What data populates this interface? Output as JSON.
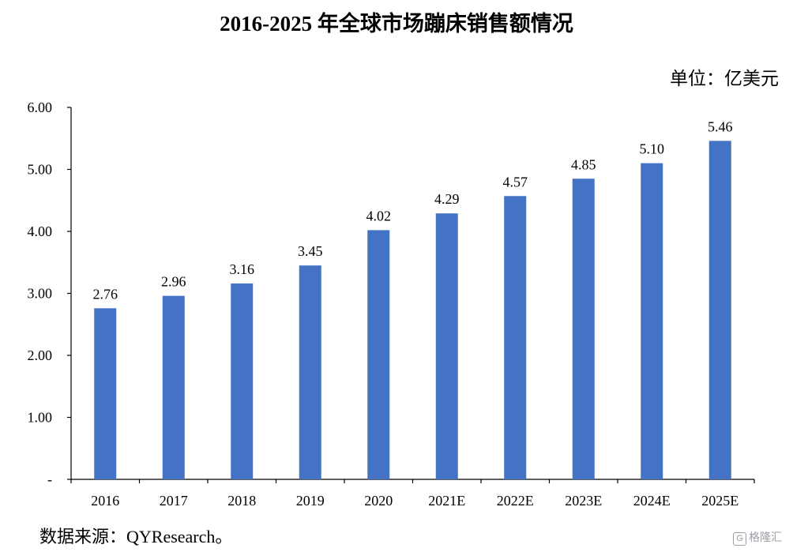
{
  "header": {
    "title": "2016-2025 年全球市场蹦床销售额情况",
    "unit": "单位：亿美元"
  },
  "footer": {
    "source": "数据来源：QYResearch。",
    "watermark_icon": "G",
    "watermark_text": "格隆汇"
  },
  "colors": {
    "bar": "#4472C4",
    "axis": "#000000"
  },
  "chart_data": {
    "type": "bar",
    "title": "2016-2025 年全球市场蹦床销售额情况",
    "xlabel": "",
    "ylabel": "",
    "unit": "单位：亿美元",
    "categories": [
      "2016",
      "2017",
      "2018",
      "2019",
      "2020",
      "2021E",
      "2022E",
      "2023E",
      "2024E",
      "2025E"
    ],
    "values": [
      2.76,
      2.96,
      3.16,
      3.45,
      4.02,
      4.29,
      4.57,
      4.85,
      5.1,
      5.46
    ],
    "value_labels": [
      "2.76",
      "2.96",
      "3.16",
      "3.45",
      "4.02",
      "4.29",
      "4.57",
      "4.85",
      "5.10",
      "5.46"
    ],
    "ylim": [
      0,
      6
    ],
    "yticks": [
      0,
      1,
      2,
      3,
      4,
      5,
      6
    ],
    "ytick_labels": [
      "-",
      "1.00",
      "2.00",
      "3.00",
      "4.00",
      "5.00",
      "6.00"
    ],
    "grid": false,
    "legend": "none"
  }
}
